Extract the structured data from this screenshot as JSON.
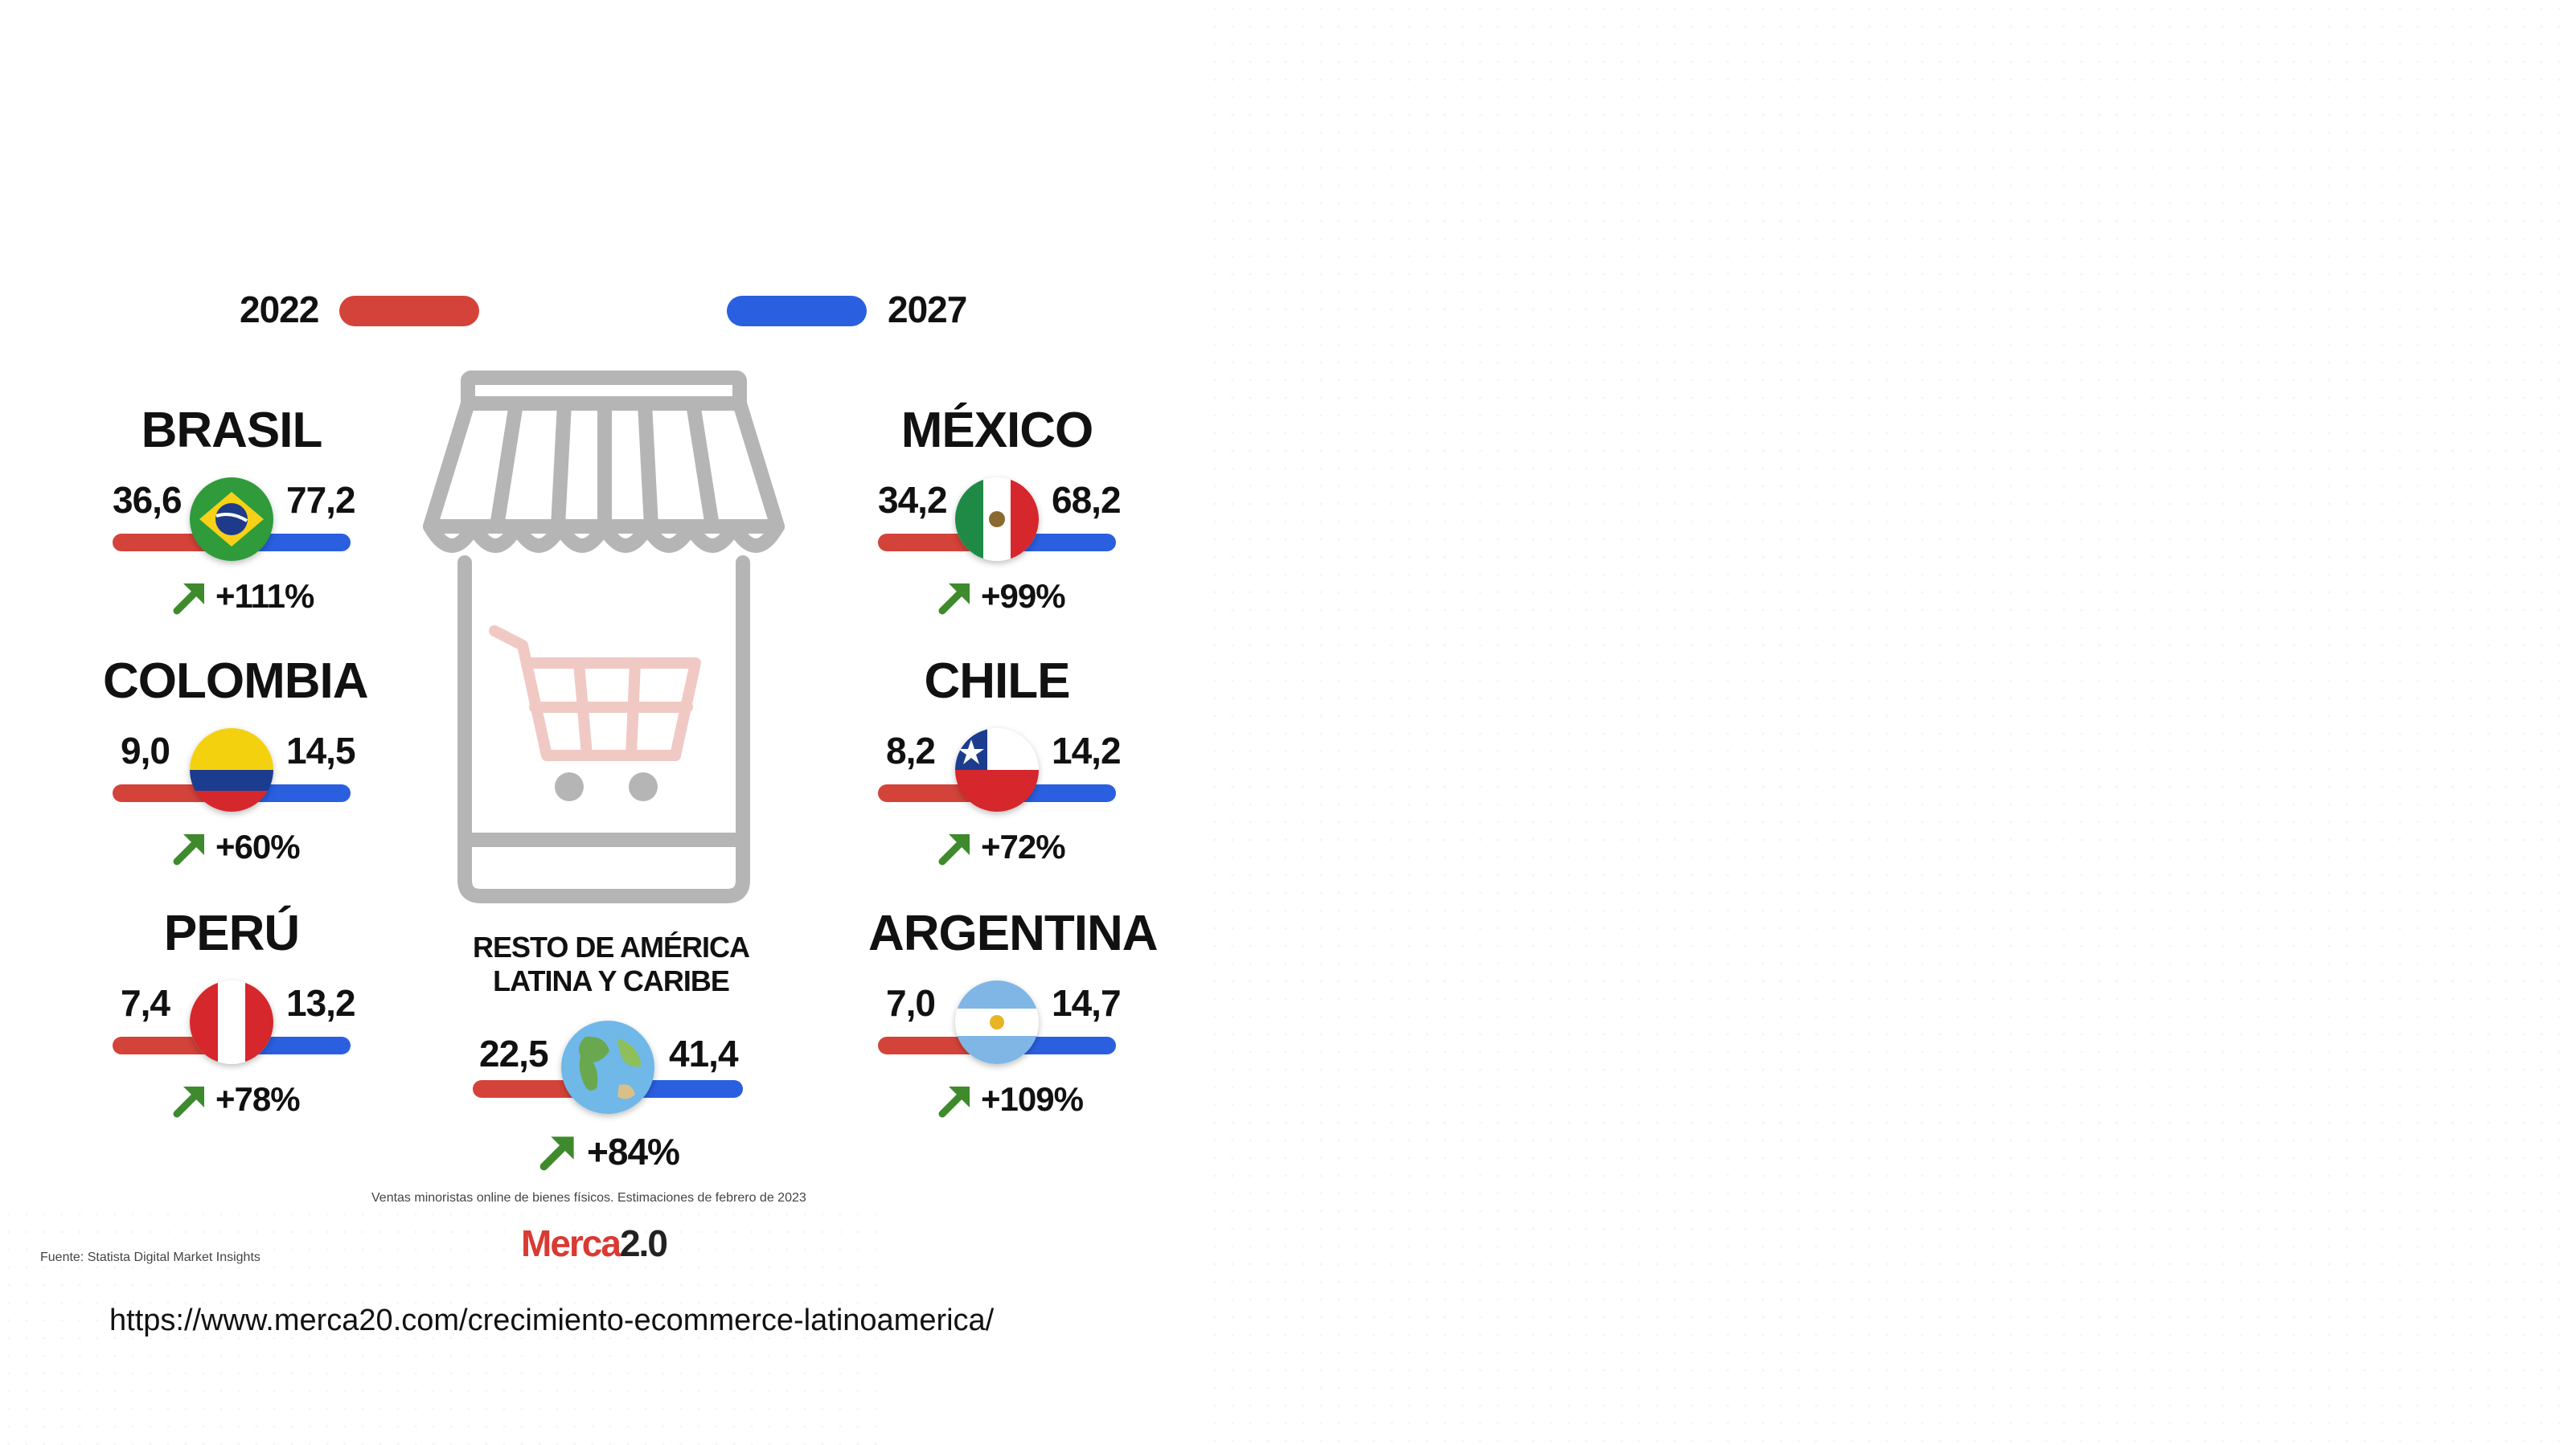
{
  "chart_data": {
    "type": "table",
    "legend": [
      {
        "label": "2022",
        "color": "#d4433a"
      },
      {
        "label": "2027",
        "color": "#2a5fe0"
      }
    ],
    "rows": [
      {
        "country": "BRASIL",
        "v2022": "36,6",
        "v2027": "77,2",
        "growth": "+111%",
        "flag": "brazil"
      },
      {
        "country": "COLOMBIA",
        "v2022": "9,0",
        "v2027": "14,5",
        "growth": "+60%",
        "flag": "colombia"
      },
      {
        "country": "PERÚ",
        "v2022": "7,4",
        "v2027": "13,2",
        "growth": "+78%",
        "flag": "peru"
      },
      {
        "country": "MÉXICO",
        "v2022": "34,2",
        "v2027": "68,2",
        "growth": "+99%",
        "flag": "mexico"
      },
      {
        "country": "CHILE",
        "v2022": "8,2",
        "v2027": "14,2",
        "growth": "+72%",
        "flag": "chile"
      },
      {
        "country": "ARGENTINA",
        "v2022": "7,0",
        "v2027": "14,7",
        "growth": "+109%",
        "flag": "argentina"
      }
    ],
    "rest": {
      "line1": "RESTO DE AMÉRICA",
      "line2": "LATINA Y CARIBE",
      "v2022": "22,5",
      "v2027": "41,4",
      "growth": "+84%",
      "flag": "globe"
    }
  },
  "footnote": "Ventas minoristas online de bienes físicos. Estimaciones de febrero de 2023",
  "source": "Fuente: Statista Digital Market Insights",
  "logo": {
    "main": "Merca",
    "suffix": "2.0"
  },
  "url": "https://www.merca20.com/crecimiento-ecommerce-latinoamerica/",
  "colors": {
    "red": "#d4433a",
    "blue": "#2a5fe0",
    "arrow": "#3e8a2c",
    "store": "#b5b5b5",
    "cart": "#f1c9c4"
  }
}
